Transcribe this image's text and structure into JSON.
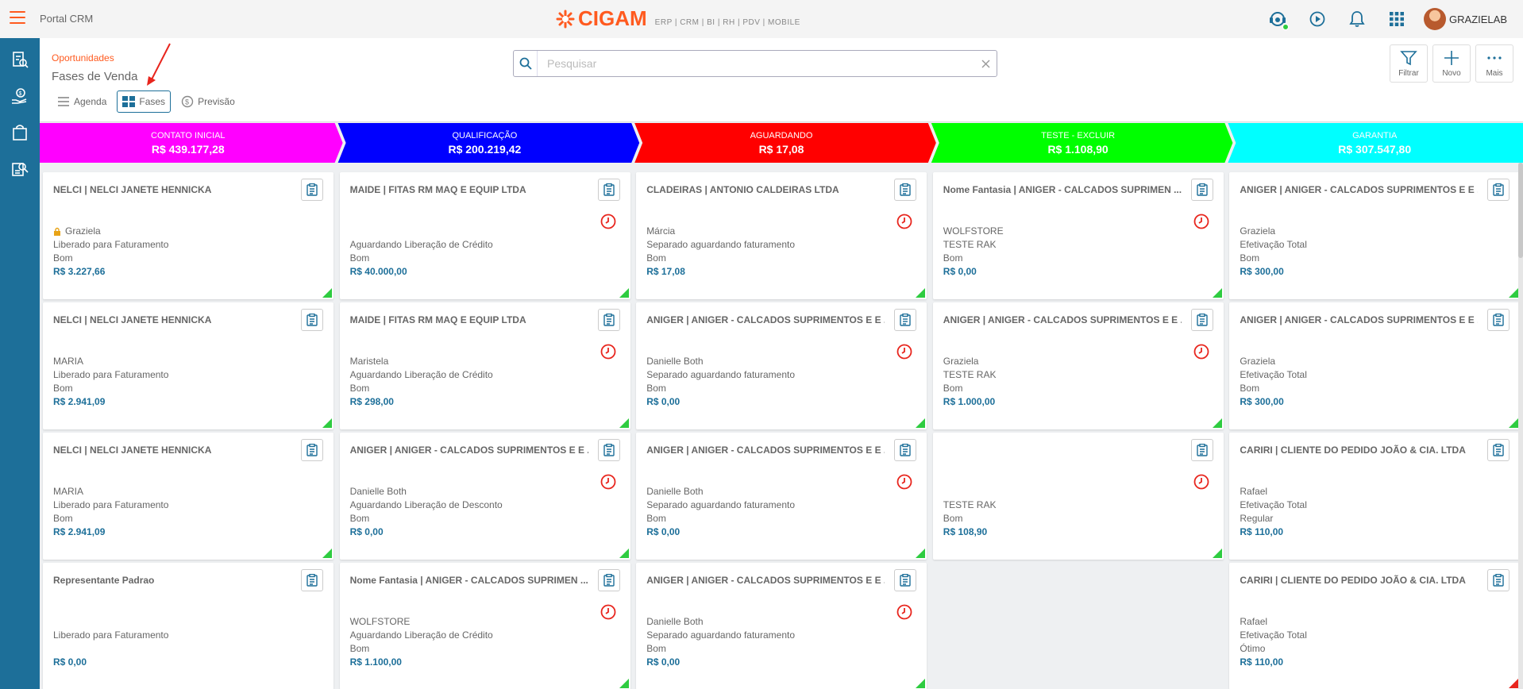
{
  "topbar": {
    "portal_title": "Portal CRM",
    "logo_text": "CIGAM",
    "logo_sub": "ERP | CRM | BI | RH | PDV | MOBILE",
    "username": "GRAZIELAB",
    "icons": [
      "support-agent-icon",
      "play-icon",
      "bell-icon",
      "apps-grid-icon"
    ]
  },
  "sidebar": {
    "items": [
      "reports-icon",
      "money-hand-icon",
      "shopping-bag-icon",
      "search-doc-icon"
    ]
  },
  "header": {
    "breadcrumb": "Oportunidades",
    "title": "Fases de Venda",
    "search_placeholder": "Pesquisar",
    "actions": [
      {
        "label": "Filtrar",
        "icon": "filter-icon"
      },
      {
        "label": "Novo",
        "icon": "plus-icon"
      },
      {
        "label": "Mais",
        "icon": "more-icon"
      }
    ],
    "tabs": [
      {
        "label": "Agenda",
        "icon": "list-icon",
        "active": false
      },
      {
        "label": "Fases",
        "icon": "grid-icon",
        "active": true
      },
      {
        "label": "Previsão",
        "icon": "forecast-icon",
        "active": false
      }
    ]
  },
  "colors": {
    "accent": "#ff5a1f",
    "primary": "#1d6f99",
    "phase_colors": [
      "#ff00ff",
      "#0000ff",
      "#ff0000",
      "#00ff00",
      "#00ffff"
    ]
  },
  "phases": [
    {
      "name": "CONTATO INICIAL",
      "total": "R$ 439.177,28",
      "color": "#ff00ff"
    },
    {
      "name": "QUALIFICAÇÃO",
      "total": "R$ 200.219,42",
      "color": "#0000ff"
    },
    {
      "name": "AGUARDANDO",
      "total": "R$ 17,08",
      "color": "#ff0000"
    },
    {
      "name": "TESTE - EXCLUIR",
      "total": "R$ 1.108,90",
      "color": "#00ff00"
    },
    {
      "name": "GARANTIA",
      "total": "R$ 307.547,80",
      "color": "#00ffff"
    }
  ],
  "columns": [
    [
      {
        "title": "NELCI | NELCI JANETE HENNICKA",
        "lines": [
          "Graziela",
          "Liberado para Faturamento",
          "Bom"
        ],
        "value": "R$ 3.227,66",
        "lock": true,
        "clock": false,
        "corner": "green"
      },
      {
        "title": "NELCI | NELCI JANETE HENNICKA",
        "lines": [
          "MARIA",
          "Liberado para Faturamento",
          "Bom"
        ],
        "value": "R$ 2.941,09",
        "lock": false,
        "clock": false,
        "corner": "green"
      },
      {
        "title": "NELCI | NELCI JANETE HENNICKA",
        "lines": [
          "MARIA",
          "Liberado para Faturamento",
          "Bom"
        ],
        "value": "R$ 2.941,09",
        "lock": false,
        "clock": false,
        "corner": "green"
      },
      {
        "title": "Representante Padrao",
        "lines": [
          "",
          "Liberado para Faturamento",
          ""
        ],
        "value": "R$ 0,00",
        "lock": false,
        "clock": false,
        "corner": "none"
      }
    ],
    [
      {
        "title": "MAIDE | FITAS RM MAQ E EQUIP LTDA",
        "lines": [
          "",
          "Aguardando Liberação de Crédito",
          "Bom"
        ],
        "value": "R$ 40.000,00",
        "lock": false,
        "clock": true,
        "corner": "green"
      },
      {
        "title": "MAIDE | FITAS RM MAQ E EQUIP LTDA",
        "lines": [
          "Maristela",
          "Aguardando Liberação de Crédito",
          "Bom"
        ],
        "value": "R$ 298,00",
        "lock": false,
        "clock": true,
        "corner": "green"
      },
      {
        "title": "ANIGER | ANIGER - CALCADOS SUPRIMENTOS E E ...",
        "lines": [
          "Danielle Both",
          "Aguardando Liberação de Desconto",
          "Bom"
        ],
        "value": "R$ 0,00",
        "lock": false,
        "clock": true,
        "corner": "green"
      },
      {
        "title": "Nome Fantasia | ANIGER - CALCADOS SUPRIMEN ...",
        "lines": [
          "WOLFSTORE",
          "Aguardando Liberação de Crédito",
          "Bom"
        ],
        "value": "R$ 1.100,00",
        "lock": false,
        "clock": true,
        "corner": "green"
      }
    ],
    [
      {
        "title": "CLADEIRAS | ANTONIO CALDEIRAS LTDA",
        "lines": [
          "Márcia",
          "Separado aguardando faturamento",
          "Bom"
        ],
        "value": "R$ 17,08",
        "lock": false,
        "clock": true,
        "corner": "green"
      },
      {
        "title": "ANIGER | ANIGER - CALCADOS SUPRIMENTOS E E ...",
        "lines": [
          "Danielle Both",
          "Separado aguardando faturamento",
          "Bom"
        ],
        "value": "R$ 0,00",
        "lock": false,
        "clock": true,
        "corner": "green"
      },
      {
        "title": "ANIGER | ANIGER - CALCADOS SUPRIMENTOS E E ...",
        "lines": [
          "Danielle Both",
          "Separado aguardando faturamento",
          "Bom"
        ],
        "value": "R$ 0,00",
        "lock": false,
        "clock": true,
        "corner": "green"
      },
      {
        "title": "ANIGER | ANIGER - CALCADOS SUPRIMENTOS E E ...",
        "lines": [
          "Danielle Both",
          "Separado aguardando faturamento",
          "Bom"
        ],
        "value": "R$ 0,00",
        "lock": false,
        "clock": true,
        "corner": "green"
      }
    ],
    [
      {
        "title": "Nome Fantasia | ANIGER - CALCADOS SUPRIMEN ...",
        "lines": [
          "WOLFSTORE",
          "TESTE RAK",
          "Bom"
        ],
        "value": "R$ 0,00",
        "lock": false,
        "clock": true,
        "corner": "green"
      },
      {
        "title": "ANIGER | ANIGER - CALCADOS SUPRIMENTOS E E ...",
        "lines": [
          "Graziela",
          "TESTE RAK",
          "Bom"
        ],
        "value": "R$ 1.000,00",
        "lock": false,
        "clock": true,
        "corner": "green"
      },
      {
        "title": "",
        "lines": [
          "",
          "TESTE RAK",
          "Bom"
        ],
        "value": "R$ 108,90",
        "lock": false,
        "clock": true,
        "corner": "green"
      }
    ],
    [
      {
        "title": "ANIGER | ANIGER - CALCADOS SUPRIMENTOS E E ...",
        "lines": [
          "Graziela",
          "Efetivação Total",
          "Bom"
        ],
        "value": "R$ 300,00",
        "lock": false,
        "clock": false,
        "corner": "green"
      },
      {
        "title": "ANIGER | ANIGER - CALCADOS SUPRIMENTOS E E ...",
        "lines": [
          "Graziela",
          "Efetivação Total",
          "Bom"
        ],
        "value": "R$ 300,00",
        "lock": false,
        "clock": false,
        "corner": "green"
      },
      {
        "title": "CARIRI | CLIENTE DO PEDIDO JOÃO & CIA. LTDA",
        "lines": [
          "Rafael",
          "Efetivação Total",
          "Regular"
        ],
        "value": "R$ 110,00",
        "lock": false,
        "clock": false,
        "corner": "none"
      },
      {
        "title": "CARIRI | CLIENTE DO PEDIDO JOÃO & CIA. LTDA",
        "lines": [
          "Rafael",
          "Efetivação Total",
          "Ótimo"
        ],
        "value": "R$ 110,00",
        "lock": false,
        "clock": false,
        "corner": "red"
      }
    ]
  ]
}
